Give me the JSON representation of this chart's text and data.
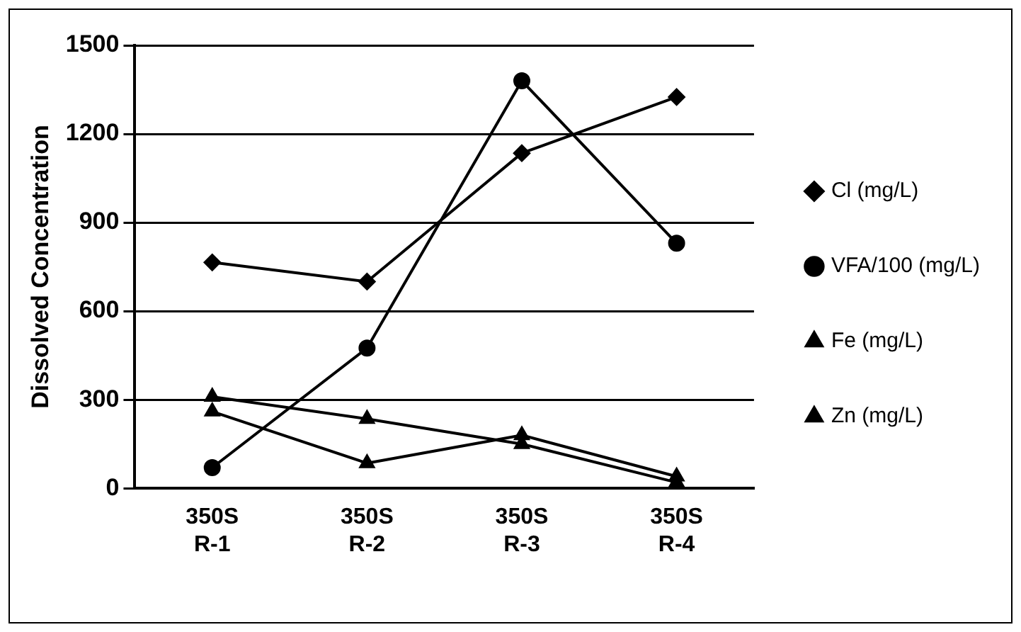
{
  "chart_data": {
    "type": "line",
    "ylabel": "Dissolved Concentration",
    "categories": [
      "350S R-1",
      "350S R-2",
      "350S R-3",
      "350S R-4"
    ],
    "series": [
      {
        "name": "Cl (mg/L)",
        "color": "#000000",
        "marker": "diamond",
        "values": [
          765,
          700,
          1135,
          1325
        ]
      },
      {
        "name": "VFA/100 (mg/L)",
        "color": "#000000",
        "marker": "circle",
        "values": [
          70,
          475,
          1380,
          830
        ]
      },
      {
        "name": "Fe (mg/L)",
        "color": "#000000",
        "marker": "triangle",
        "values": [
          310,
          235,
          150,
          20
        ]
      },
      {
        "name": "Zn (mg/L)",
        "color": "#000000",
        "marker": "triangle",
        "values": [
          260,
          85,
          180,
          40
        ]
      }
    ],
    "ylim": [
      0,
      1500
    ],
    "yticks": [
      0,
      300,
      600,
      900,
      1200,
      1500
    ],
    "grid": "y",
    "legend": "right"
  }
}
